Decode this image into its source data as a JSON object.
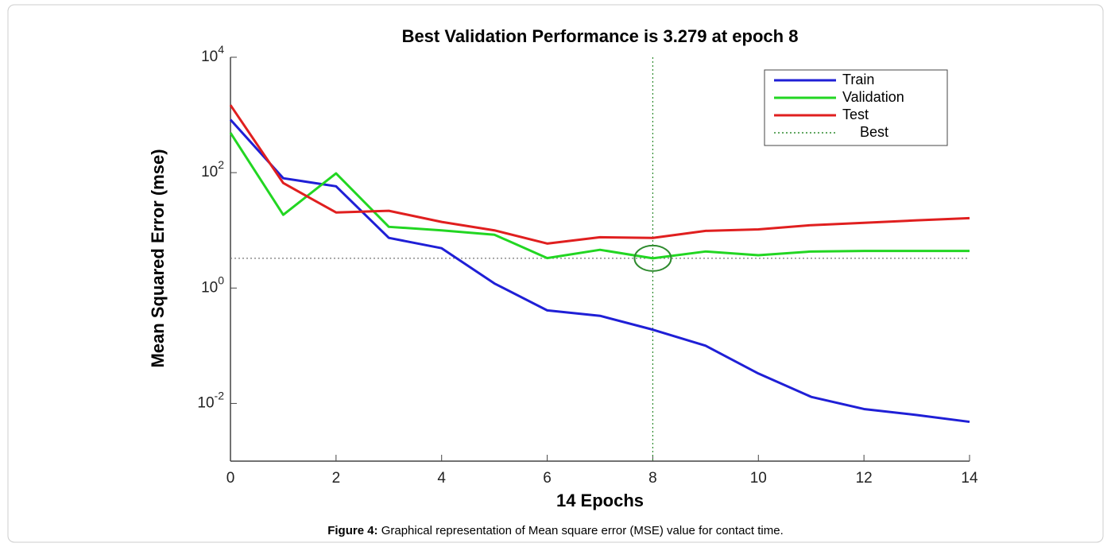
{
  "chart_data": {
    "type": "line",
    "title": "Best Validation Performance is 3.279 at epoch 8",
    "xlabel": "14 Epochs",
    "ylabel": "Mean Squared Error  (mse)",
    "x": [
      0,
      1,
      2,
      3,
      4,
      5,
      6,
      7,
      8,
      9,
      10,
      11,
      12,
      13,
      14
    ],
    "series": [
      {
        "name": "Train",
        "color": "#1f1fd6",
        "values": [
          830,
          80,
          58,
          7.4,
          4.9,
          1.2,
          0.41,
          0.33,
          0.19,
          0.1,
          0.033,
          0.013,
          0.008,
          0.0063,
          0.0048
        ]
      },
      {
        "name": "Validation",
        "color": "#22d622",
        "values": [
          490,
          18.6,
          97,
          11.5,
          10,
          8.4,
          3.3,
          4.6,
          3.279,
          4.3,
          3.7,
          4.3,
          4.4,
          4.4,
          4.4
        ]
      },
      {
        "name": "Test",
        "color": "#e01f1f",
        "values": [
          1480,
          66,
          20.4,
          21.8,
          14,
          10,
          5.9,
          7.6,
          7.4,
          9.8,
          10.4,
          12.3,
          13.5,
          14.9,
          16.3
        ]
      }
    ],
    "best": {
      "name": "Best",
      "x": 8,
      "y": 3.279,
      "color": "#2e8b2e"
    },
    "xlim": [
      0,
      14
    ],
    "xticks": [
      0,
      2,
      4,
      6,
      8,
      10,
      12,
      14
    ],
    "ylim": [
      0.001,
      10000
    ],
    "yticks": [
      {
        "value": 0.01,
        "label": "10^-2"
      },
      {
        "value": 1,
        "label": "10^0"
      },
      {
        "value": 100,
        "label": "10^2"
      },
      {
        "value": 10000,
        "label": "10^4"
      }
    ],
    "log_y": true,
    "grid": false,
    "legend": "upper right"
  },
  "caption": {
    "label": "Figure 4:",
    "text": " Graphical representation of Mean square error (MSE) value for contact time."
  }
}
